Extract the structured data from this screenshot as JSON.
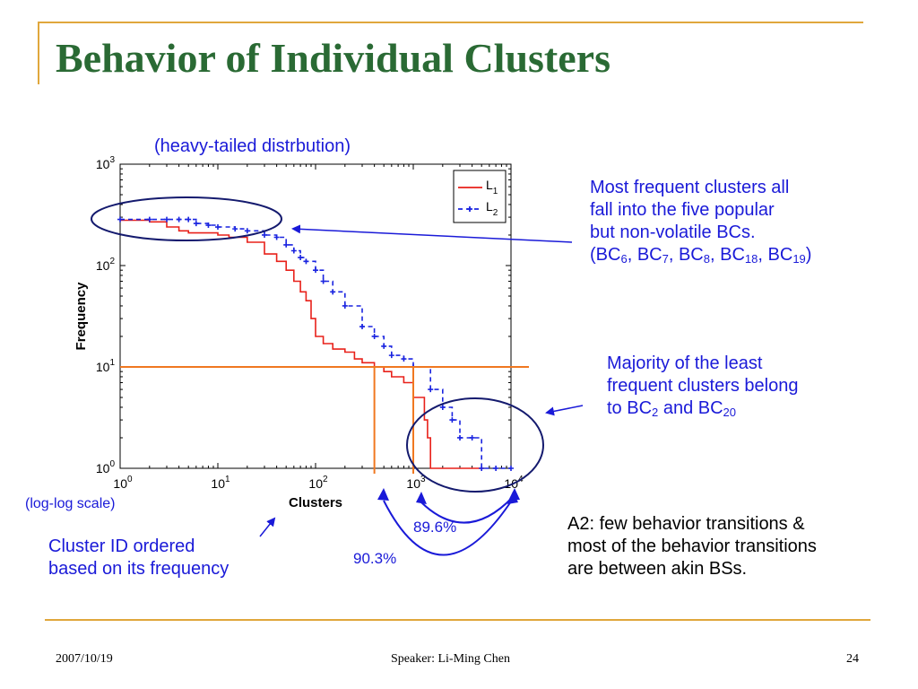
{
  "slide": {
    "title": "Behavior of Individual Clusters",
    "footer_date": "2007/10/19",
    "footer_speaker": "Speaker: Li-Ming Chen",
    "footer_page": "24",
    "accent_color": "#e0a73c",
    "title_color": "#2a6a34",
    "note_color": "#1a1ad8"
  },
  "annotations": {
    "heavy_tailed": "(heavy-tailed distrbution)",
    "log_log": "(log-log scale)",
    "frequent_line1": "Most frequent clusters all",
    "frequent_line2": "fall into the five popular",
    "frequent_line3": "but non-volatile BCs.",
    "frequent_bcs": [
      {
        "base": "(BC",
        "sub": "6",
        "tail": ", "
      },
      {
        "base": "BC",
        "sub": "7",
        "tail": ", "
      },
      {
        "base": "BC",
        "sub": "8",
        "tail": ", "
      },
      {
        "base": "BC",
        "sub": "18",
        "tail": ", "
      },
      {
        "base": "BC",
        "sub": "19",
        "tail": ")"
      }
    ],
    "least_line1": "Majority of the least",
    "least_line2": "frequent clusters belong",
    "least_bcs": [
      {
        "base": "to BC",
        "sub": "2",
        "tail": " and "
      },
      {
        "base": "BC",
        "sub": "20",
        "tail": ""
      }
    ],
    "cluster_line1": "Cluster ID ordered",
    "cluster_line2": "based on its frequency",
    "pct_l2": "89.6%",
    "pct_l1": "90.3%",
    "a2_line1": "A2: few behavior transitions &",
    "a2_line2": "most of the behavior transitions",
    "a2_line3": "are between akin BSs."
  },
  "chart_data": {
    "type": "line",
    "xscale": "log",
    "yscale": "log",
    "xlim": [
      1,
      10000
    ],
    "ylim": [
      1,
      1000
    ],
    "xlabel": "Clusters",
    "ylabel": "Frequency",
    "xticks": [
      {
        "value": 1,
        "base": "10",
        "exp": "0"
      },
      {
        "value": 10,
        "base": "10",
        "exp": "1"
      },
      {
        "value": 100,
        "base": "10",
        "exp": "2"
      },
      {
        "value": 1000,
        "base": "10",
        "exp": "3"
      },
      {
        "value": 10000,
        "base": "10",
        "exp": "4"
      }
    ],
    "yticks": [
      {
        "value": 1,
        "base": "10",
        "exp": "0"
      },
      {
        "value": 10,
        "base": "10",
        "exp": "1"
      },
      {
        "value": 100,
        "base": "10",
        "exp": "2"
      },
      {
        "value": 1000,
        "base": "10",
        "exp": "3"
      }
    ],
    "series": [
      {
        "name": "L",
        "sub": "1",
        "color": "#e8211a",
        "style": "solid-step",
        "x": [
          1,
          2,
          3,
          4,
          5,
          6,
          8,
          10,
          13,
          20,
          30,
          40,
          50,
          60,
          70,
          80,
          90,
          100,
          120,
          150,
          200,
          250,
          300,
          400,
          500,
          600,
          800,
          1000,
          1300,
          1400,
          1500,
          5300
        ],
        "y": [
          280,
          270,
          240,
          220,
          210,
          210,
          210,
          200,
          190,
          170,
          130,
          110,
          90,
          70,
          55,
          45,
          30,
          20,
          17,
          15,
          14,
          12,
          11,
          10,
          9,
          8,
          7,
          5,
          3,
          2,
          1,
          1
        ]
      },
      {
        "name": "L",
        "sub": "2",
        "color": "#1a24e0",
        "style": "dashed-plus",
        "x": [
          1,
          2,
          3,
          4,
          5,
          6,
          8,
          10,
          15,
          20,
          30,
          40,
          50,
          60,
          70,
          80,
          100,
          120,
          150,
          200,
          300,
          400,
          500,
          600,
          800,
          1000,
          1500,
          2000,
          2500,
          3000,
          4000,
          5000,
          7000,
          10000
        ],
        "y": [
          285,
          285,
          285,
          285,
          285,
          260,
          250,
          240,
          230,
          220,
          200,
          190,
          160,
          140,
          120,
          110,
          90,
          70,
          55,
          40,
          25,
          20,
          16,
          13,
          12,
          10,
          6,
          4,
          3,
          2,
          2,
          1,
          1,
          1
        ]
      }
    ],
    "legend_position": "top-right",
    "threshold_y": 10,
    "threshold_x": [
      400,
      1000
    ]
  }
}
